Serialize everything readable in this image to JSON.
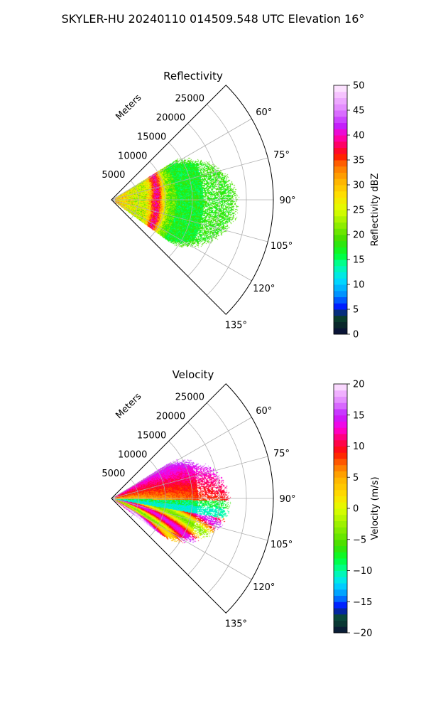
{
  "figure": {
    "title": "SKYLER-HU  20240110  014509.548 UTC Elevation 16°"
  },
  "chart_data": [
    {
      "type": "heatmap",
      "projection": "polar-sector",
      "title": "Reflectivity",
      "radial_label": "Meters",
      "r_ticks": [
        5000,
        10000,
        15000,
        20000,
        25000
      ],
      "r_max": 30000,
      "theta_ticks": [
        "60°",
        "75°",
        "90°",
        "105°",
        "120°",
        "135°"
      ],
      "theta_tick_values": [
        60,
        75,
        90,
        105,
        120,
        135
      ],
      "theta_range": [
        45,
        135
      ],
      "grid": true,
      "colorbar": {
        "label": "Reflectivity dBZ",
        "range": [
          0,
          50
        ],
        "ticks": [
          "0",
          "5",
          "10",
          "15",
          "20",
          "25",
          "30",
          "35",
          "40",
          "45",
          "50"
        ],
        "stops": [
          {
            "v": 0,
            "c": "#0a0a3c"
          },
          {
            "v": 2,
            "c": "#0a2a2a"
          },
          {
            "v": 4,
            "c": "#0a4a30"
          },
          {
            "v": 5,
            "c": "#0000ff"
          },
          {
            "v": 8,
            "c": "#0090ff"
          },
          {
            "v": 11,
            "c": "#00e0ff"
          },
          {
            "v": 14,
            "c": "#00ffa0"
          },
          {
            "v": 16,
            "c": "#00ff30"
          },
          {
            "v": 19,
            "c": "#40dd00"
          },
          {
            "v": 22,
            "c": "#90ee00"
          },
          {
            "v": 25,
            "c": "#e0ff00"
          },
          {
            "v": 28,
            "c": "#ffe000"
          },
          {
            "v": 31,
            "c": "#ffb000"
          },
          {
            "v": 34,
            "c": "#ff7000"
          },
          {
            "v": 36,
            "c": "#ff1000"
          },
          {
            "v": 38,
            "c": "#ff0060"
          },
          {
            "v": 40,
            "c": "#ff00c0"
          },
          {
            "v": 42,
            "c": "#c020ff"
          },
          {
            "v": 45,
            "c": "#e080ff"
          },
          {
            "v": 48,
            "c": "#f5c0ff"
          },
          {
            "v": 50,
            "c": "#fff0ff"
          }
        ]
      },
      "field": {
        "kind": "reflectivity",
        "data_extent_m": [
          23000,
          13500
        ],
        "data_theta_range": [
          58,
          126
        ]
      }
    },
    {
      "type": "heatmap",
      "projection": "polar-sector",
      "title": "Velocity",
      "radial_label": "Meters",
      "r_ticks": [
        5000,
        10000,
        15000,
        20000,
        25000
      ],
      "r_max": 30000,
      "theta_ticks": [
        "60°",
        "75°",
        "90°",
        "105°",
        "120°",
        "135°"
      ],
      "theta_tick_values": [
        60,
        75,
        90,
        105,
        120,
        135
      ],
      "theta_range": [
        45,
        135
      ],
      "grid": true,
      "colorbar": {
        "label": "Velocity (m/s)",
        "range": [
          -20,
          20
        ],
        "ticks": [
          "−20",
          "−15",
          "−10",
          "−5",
          "0",
          "5",
          "10",
          "15",
          "20"
        ],
        "stops": [
          {
            "v": -20,
            "c": "#0a0a3c"
          },
          {
            "v": -19,
            "c": "#0a3030"
          },
          {
            "v": -17,
            "c": "#0a5040"
          },
          {
            "v": -16,
            "c": "#0000ff"
          },
          {
            "v": -14,
            "c": "#0090ff"
          },
          {
            "v": -12,
            "c": "#00e0ff"
          },
          {
            "v": -10,
            "c": "#00ffa0"
          },
          {
            "v": -8,
            "c": "#00ff30"
          },
          {
            "v": -6,
            "c": "#40dd00"
          },
          {
            "v": -3,
            "c": "#90ee00"
          },
          {
            "v": 0,
            "c": "#e0ff00"
          },
          {
            "v": 2,
            "c": "#ffe000"
          },
          {
            "v": 5,
            "c": "#ffb000"
          },
          {
            "v": 7,
            "c": "#ff7000"
          },
          {
            "v": 9,
            "c": "#ff1000"
          },
          {
            "v": 11,
            "c": "#ff0060"
          },
          {
            "v": 13,
            "c": "#ff00e0"
          },
          {
            "v": 15,
            "c": "#c020ff"
          },
          {
            "v": 17,
            "c": "#e080ff"
          },
          {
            "v": 19,
            "c": "#f5c0ff"
          },
          {
            "v": 20,
            "c": "#fff0ff"
          }
        ]
      },
      "field": {
        "kind": "velocity",
        "data_extent_m": [
          23000,
          13500
        ],
        "data_theta_range": [
          58,
          126
        ]
      }
    }
  ]
}
